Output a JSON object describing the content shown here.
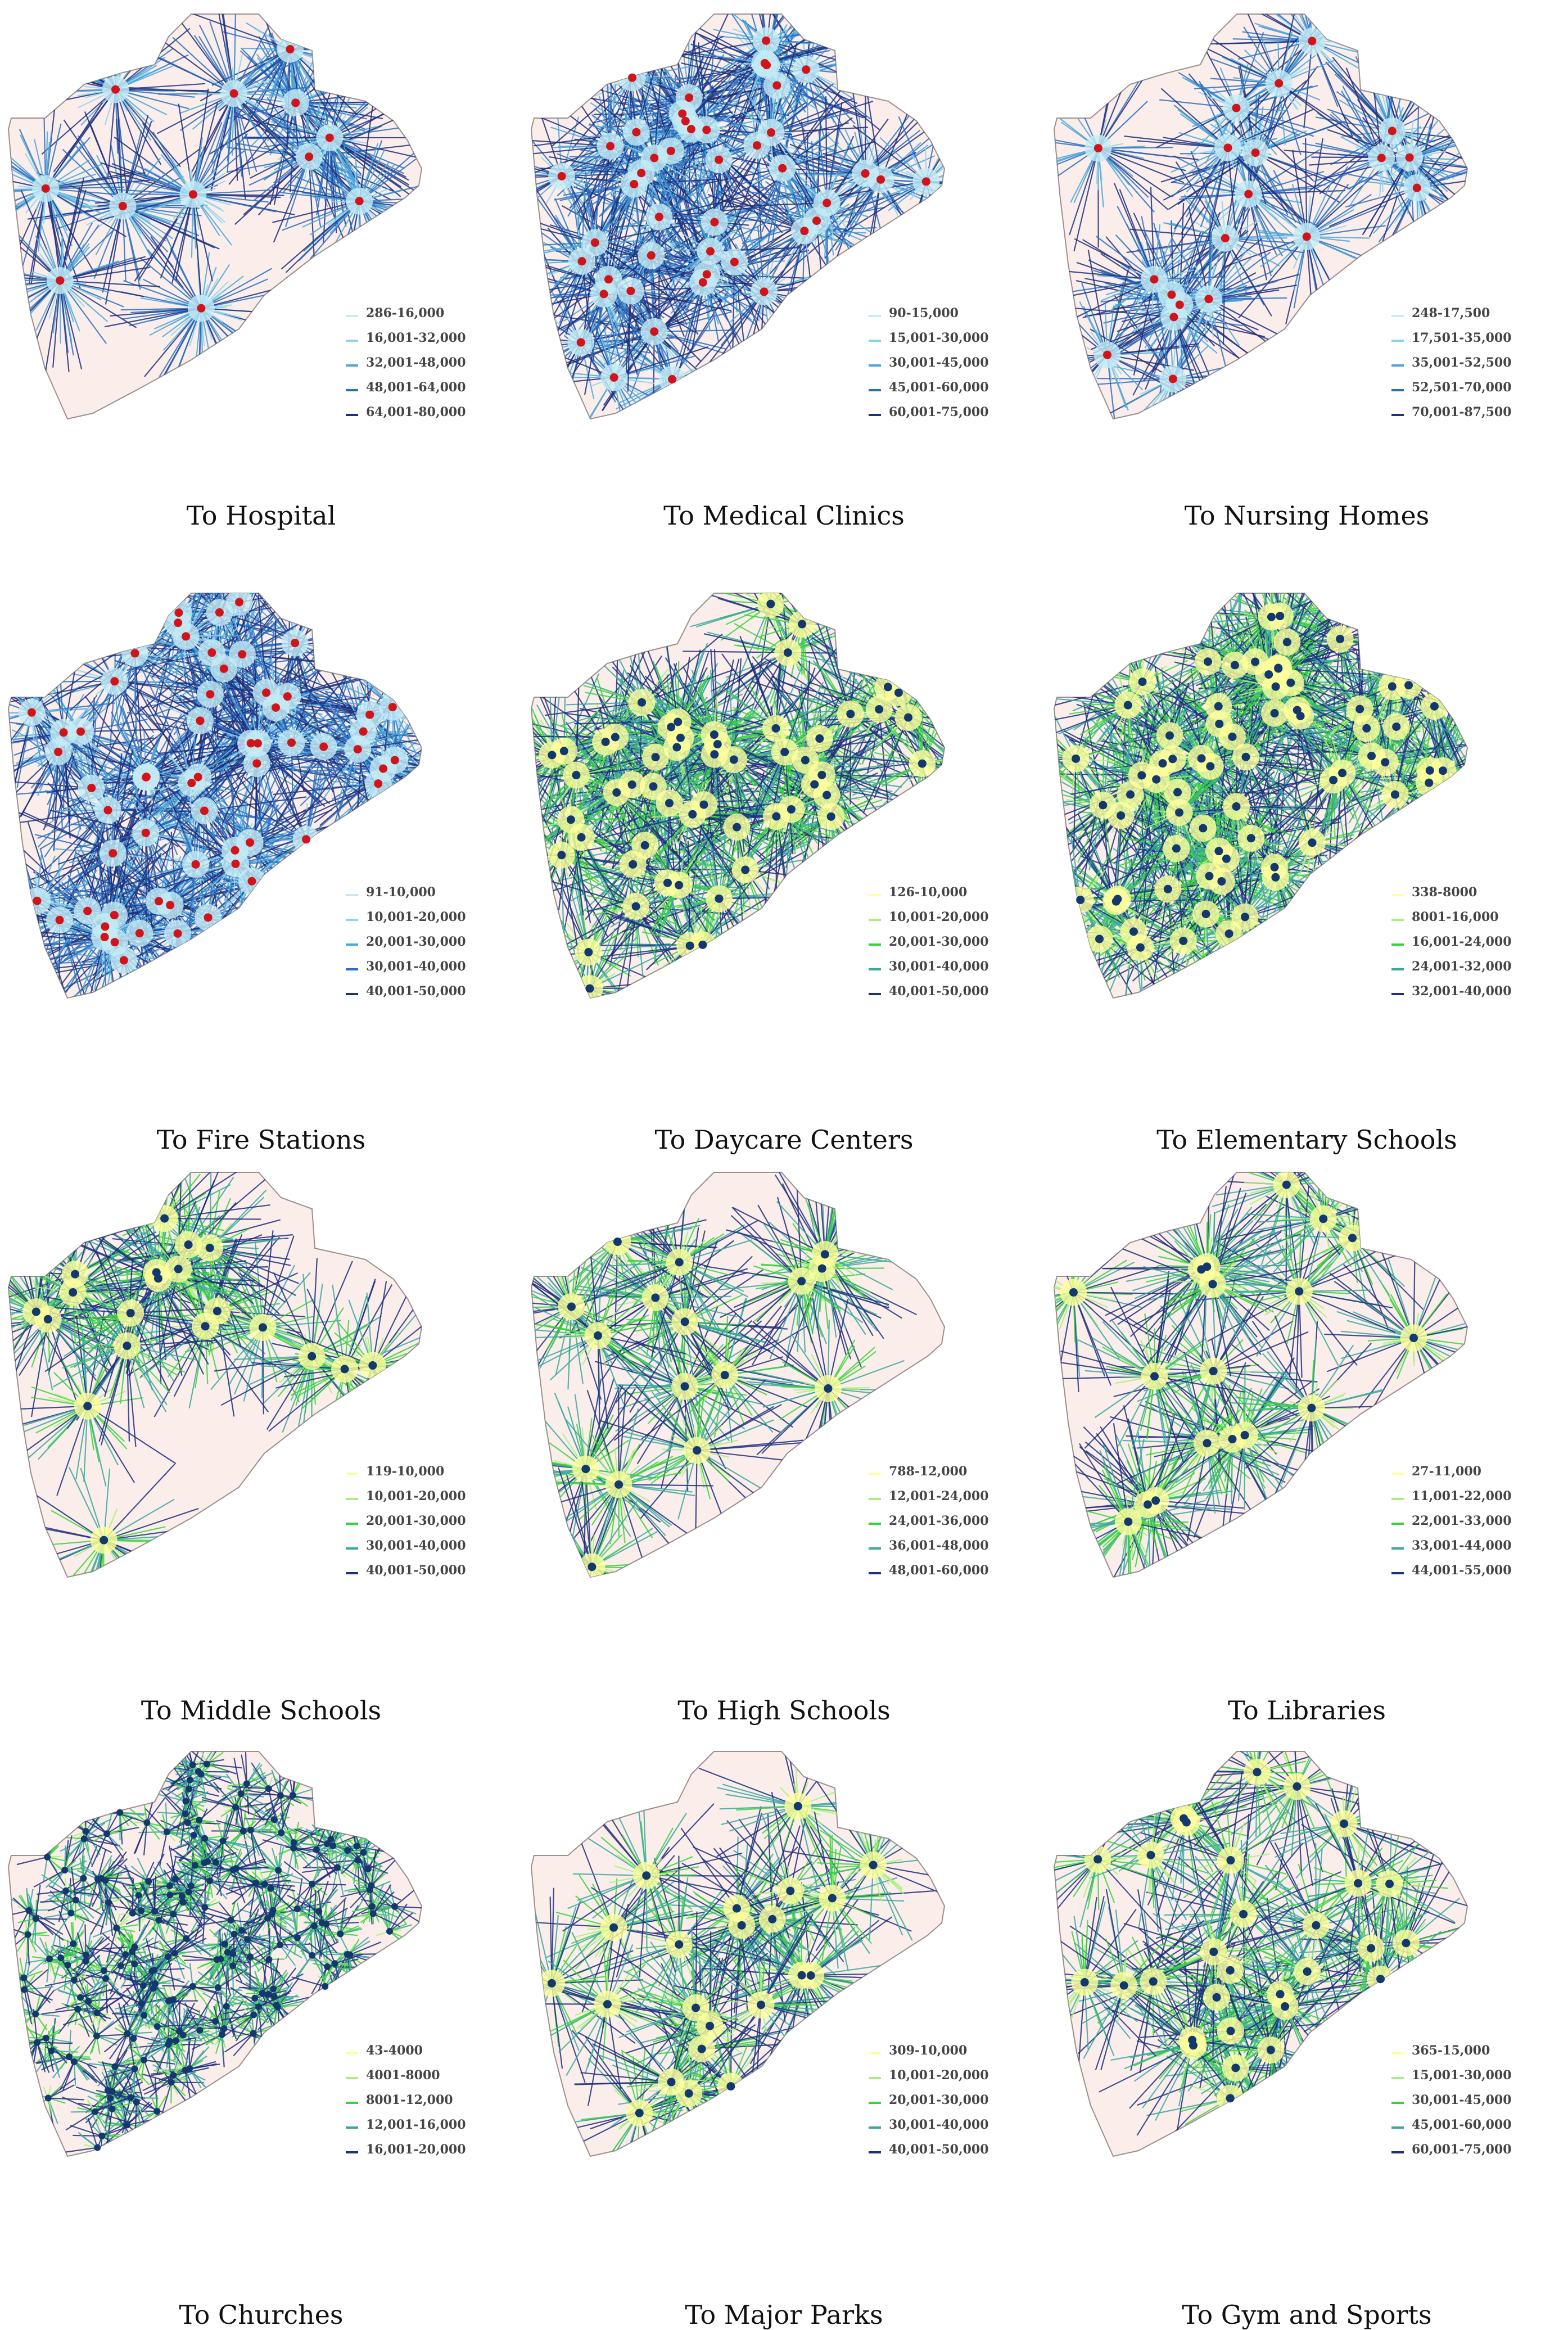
{
  "panels": [
    {
      "caption": "To Hospital",
      "legend": [
        "286-16,000",
        "16,001-32,000",
        "32,001-48,000",
        "48,001-64,000",
        "64,001-80,000"
      ],
      "scheme": "blue",
      "marker": "red",
      "facilities": 12
    },
    {
      "caption": "To Medical Clinics",
      "legend": [
        "90-15,000",
        "15,001-30,000",
        "30,001-45,000",
        "45,001-60,000",
        "60,001-75,000"
      ],
      "scheme": "blue",
      "marker": "red",
      "facilities": 45
    },
    {
      "caption": "To Nursing Homes",
      "legend": [
        "248-17,500",
        "17,501-35,000",
        "35,001-52,500",
        "52,501-70,000",
        "70,001-87,500"
      ],
      "scheme": "blue",
      "marker": "red",
      "facilities": 20
    },
    {
      "caption": "To Fire Stations",
      "legend": [
        "91-10,000",
        "10,001-20,000",
        "20,001-30,000",
        "30,001-40,000",
        "40,001-50,000"
      ],
      "scheme": "blue",
      "marker": "red",
      "facilities": 60
    },
    {
      "caption": "To Daycare Centers",
      "legend": [
        "126-10,000",
        "10,001-20,000",
        "20,001-30,000",
        "30,001-40,000",
        "40,001-50,000"
      ],
      "scheme": "green",
      "marker": "navy",
      "facilities": 55
    },
    {
      "caption": "To Elementary Schools",
      "legend": [
        "338-8000",
        "8001-16,000",
        "16,001-24,000",
        "24,001-32,000",
        "32,001-40,000"
      ],
      "scheme": "green",
      "marker": "navy",
      "facilities": 70
    },
    {
      "caption": "To Middle Schools",
      "legend": [
        "119-10,000",
        "10,001-20,000",
        "20,001-30,000",
        "30,001-40,000",
        "40,001-50,000"
      ],
      "scheme": "green",
      "marker": "navy",
      "facilities": 20
    },
    {
      "caption": "To High Schools",
      "legend": [
        "788-12,000",
        "12,001-24,000",
        "24,001-36,000",
        "36,001-48,000",
        "48,001-60,000"
      ],
      "scheme": "green",
      "marker": "navy",
      "facilities": 16
    },
    {
      "caption": "To Libraries",
      "legend": [
        "27-11,000",
        "11,001-22,000",
        "22,001-33,000",
        "33,001-44,000",
        "44,001-55,000"
      ],
      "scheme": "green",
      "marker": "navy",
      "facilities": 18
    },
    {
      "caption": "To Churches",
      "legend": [
        "43-4000",
        "4001-8000",
        "8001-12,000",
        "12,001-16,000",
        "16,001-20,000"
      ],
      "scheme": "green",
      "marker": "navy",
      "facilities": 200
    },
    {
      "caption": "To Major Parks",
      "legend": [
        "309-10,000",
        "10,001-20,000",
        "20,001-30,000",
        "30,001-40,000",
        "40,001-50,000"
      ],
      "scheme": "green",
      "marker": "navy",
      "facilities": 22
    },
    {
      "caption": "To Gym and Sports",
      "legend": [
        "365-15,000",
        "15,001-30,000",
        "30,001-45,000",
        "45,001-60,000",
        "60,001-75,000"
      ],
      "scheme": "green",
      "marker": "navy",
      "facilities": 30
    }
  ],
  "colors": {
    "blue": [
      "#c5ecf5",
      "#8fd3ee",
      "#4aa6dc",
      "#2a6fc1",
      "#1d2f7e"
    ],
    "green": [
      "#ffff9e",
      "#a8f07a",
      "#38d23c",
      "#3aa79f",
      "#1d2f7e"
    ],
    "red": "#d1141a",
    "navy": "#14386e",
    "land": "#fbeeea",
    "outline": "#9b8f8f"
  }
}
